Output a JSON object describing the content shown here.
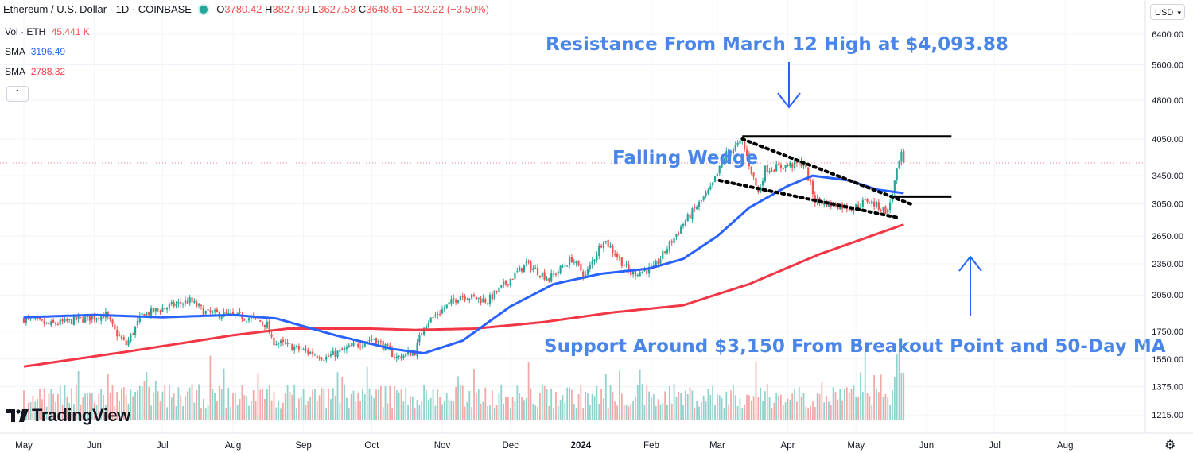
{
  "header": {
    "symbol": "Ethereum / U.S. Dollar · 1D · COINBASE",
    "open_label": "O",
    "open": "3780.42",
    "high_label": "H",
    "high": "3827.99",
    "low_label": "L",
    "low": "3627.53",
    "close_label": "C",
    "close": "3648.61",
    "change": "−132.22 (−3.50%)"
  },
  "indicators": {
    "vol_label": "Vol · ETH",
    "vol_value": "45.441 K",
    "sma1_label": "SMA",
    "sma1_value": "3196.49",
    "sma2_label": "SMA",
    "sma2_value": "2788.32"
  },
  "toolbar": {
    "currency": "USD",
    "collapse_icon": "chevron-up-icon",
    "settings_icon": "gear-icon"
  },
  "branding": {
    "logo_text": "TradingView",
    "logo_mark": "17"
  },
  "colors": {
    "up": "#26a69a",
    "down": "#ef5350",
    "sma50": "#2962ff",
    "sma200": "#f23645",
    "annotation": "#4a86e8"
  },
  "chart_data": {
    "type": "candlestick",
    "title": "Ethereum / U.S. Dollar · 1D · COINBASE",
    "y_scale": "log",
    "ylim": [
      1150,
      7000
    ],
    "y_ticks": [
      6400,
      5600,
      4800,
      4050,
      3450,
      3050,
      2650,
      2350,
      2050,
      1750,
      1550,
      1375,
      1215
    ],
    "y_tick_labels": [
      "6400.00",
      "5600.00",
      "4800.00",
      "4050.00",
      "3450.00",
      "3050.00",
      "2650.00",
      "2350.00",
      "2050.00",
      "1750.00",
      "1550.00",
      "1375.00",
      "1215.00"
    ],
    "x_domain": [
      "2023-05-01",
      "2024-08-31"
    ],
    "x_ticks": [
      {
        "date": "2023-05-01",
        "label": "May"
      },
      {
        "date": "2023-06-01",
        "label": "Jun"
      },
      {
        "date": "2023-07-01",
        "label": "Jul"
      },
      {
        "date": "2023-08-01",
        "label": "Aug"
      },
      {
        "date": "2023-09-01",
        "label": "Sep"
      },
      {
        "date": "2023-10-01",
        "label": "Oct"
      },
      {
        "date": "2023-11-01",
        "label": "Nov"
      },
      {
        "date": "2023-12-01",
        "label": "Dec"
      },
      {
        "date": "2024-01-01",
        "label": "2024"
      },
      {
        "date": "2024-02-01",
        "label": "Feb"
      },
      {
        "date": "2024-03-01",
        "label": "Mar"
      },
      {
        "date": "2024-04-01",
        "label": "Apr"
      },
      {
        "date": "2024-05-01",
        "label": "May"
      },
      {
        "date": "2024-06-01",
        "label": "Jun"
      },
      {
        "date": "2024-07-01",
        "label": "Jul"
      },
      {
        "date": "2024-08-01",
        "label": "Aug"
      }
    ],
    "last_price": 3648.61,
    "close_anchors": [
      [
        "2023-05-01",
        1850
      ],
      [
        "2023-05-12",
        1800
      ],
      [
        "2023-05-28",
        1850
      ],
      [
        "2023-06-06",
        1880
      ],
      [
        "2023-06-10",
        1750
      ],
      [
        "2023-06-15",
        1650
      ],
      [
        "2023-06-22",
        1880
      ],
      [
        "2023-07-04",
        1950
      ],
      [
        "2023-07-13",
        2000
      ],
      [
        "2023-07-20",
        1900
      ],
      [
        "2023-08-10",
        1850
      ],
      [
        "2023-08-16",
        1800
      ],
      [
        "2023-08-18",
        1680
      ],
      [
        "2023-09-11",
        1560
      ],
      [
        "2023-09-20",
        1620
      ],
      [
        "2023-10-02",
        1700
      ],
      [
        "2023-10-12",
        1560
      ],
      [
        "2023-10-20",
        1600
      ],
      [
        "2023-10-24",
        1800
      ],
      [
        "2023-11-09",
        2050
      ],
      [
        "2023-11-21",
        2000
      ],
      [
        "2023-12-08",
        2350
      ],
      [
        "2023-12-18",
        2200
      ],
      [
        "2023-12-28",
        2400
      ],
      [
        "2024-01-03",
        2230
      ],
      [
        "2024-01-11",
        2620
      ],
      [
        "2024-01-23",
        2250
      ],
      [
        "2024-02-02",
        2300
      ],
      [
        "2024-02-15",
        2800
      ],
      [
        "2024-02-27",
        3250
      ],
      [
        "2024-03-05",
        3800
      ],
      [
        "2024-03-12",
        4000
      ],
      [
        "2024-03-19",
        3200
      ],
      [
        "2024-03-22",
        3550
      ],
      [
        "2024-04-08",
        3650
      ],
      [
        "2024-04-13",
        3100
      ],
      [
        "2024-04-19",
        3050
      ],
      [
        "2024-04-30",
        3000
      ],
      [
        "2024-05-06",
        3100
      ],
      [
        "2024-05-15",
        2950
      ],
      [
        "2024-05-20",
        3650
      ],
      [
        "2024-05-21",
        3770
      ],
      [
        "2024-05-22",
        3648.61
      ]
    ],
    "sma50_anchors": [
      [
        "2023-05-01",
        1860
      ],
      [
        "2023-06-01",
        1880
      ],
      [
        "2023-07-01",
        1860
      ],
      [
        "2023-08-01",
        1880
      ],
      [
        "2023-08-20",
        1850
      ],
      [
        "2023-09-15",
        1720
      ],
      [
        "2023-10-10",
        1620
      ],
      [
        "2023-10-24",
        1590
      ],
      [
        "2023-11-10",
        1680
      ],
      [
        "2023-12-01",
        1950
      ],
      [
        "2023-12-20",
        2150
      ],
      [
        "2024-01-10",
        2250
      ],
      [
        "2024-01-31",
        2300
      ],
      [
        "2024-02-15",
        2400
      ],
      [
        "2024-03-01",
        2650
      ],
      [
        "2024-03-15",
        3000
      ],
      [
        "2024-04-01",
        3300
      ],
      [
        "2024-04-12",
        3450
      ],
      [
        "2024-04-28",
        3380
      ],
      [
        "2024-05-10",
        3250
      ],
      [
        "2024-05-22",
        3196.49
      ]
    ],
    "sma200_anchors": [
      [
        "2023-05-01",
        1500
      ],
      [
        "2023-06-15",
        1600
      ],
      [
        "2023-08-01",
        1720
      ],
      [
        "2023-08-25",
        1770
      ],
      [
        "2023-10-01",
        1770
      ],
      [
        "2023-10-20",
        1760
      ],
      [
        "2023-11-15",
        1770
      ],
      [
        "2023-12-15",
        1820
      ],
      [
        "2024-01-15",
        1900
      ],
      [
        "2024-02-15",
        1960
      ],
      [
        "2024-03-15",
        2150
      ],
      [
        "2024-04-15",
        2450
      ],
      [
        "2024-05-22",
        2788.32
      ]
    ],
    "lines": [
      {
        "name": "resistance",
        "value": 4093.88,
        "from": "2024-03-12",
        "to": "2024-06-12"
      },
      {
        "name": "support",
        "value": 3150,
        "from": "2024-05-17",
        "to": "2024-06-12"
      }
    ],
    "wedge": [
      {
        "name": "wedge-upper",
        "from": [
          "2024-03-12",
          4050
        ],
        "to": [
          "2024-05-25",
          3050
        ]
      },
      {
        "name": "wedge-lower",
        "from": [
          "2024-03-02",
          3380
        ],
        "to": [
          "2024-05-20",
          2870
        ]
      }
    ],
    "annotations": [
      {
        "name": "resistance-label",
        "text": "Resistance From March 12 High at $4,093.88"
      },
      {
        "name": "wedge-label",
        "text": "Falling Wedge"
      },
      {
        "name": "support-label",
        "text": "Support Around $3,150 From Breakout Point and 50-Day MA"
      }
    ]
  }
}
